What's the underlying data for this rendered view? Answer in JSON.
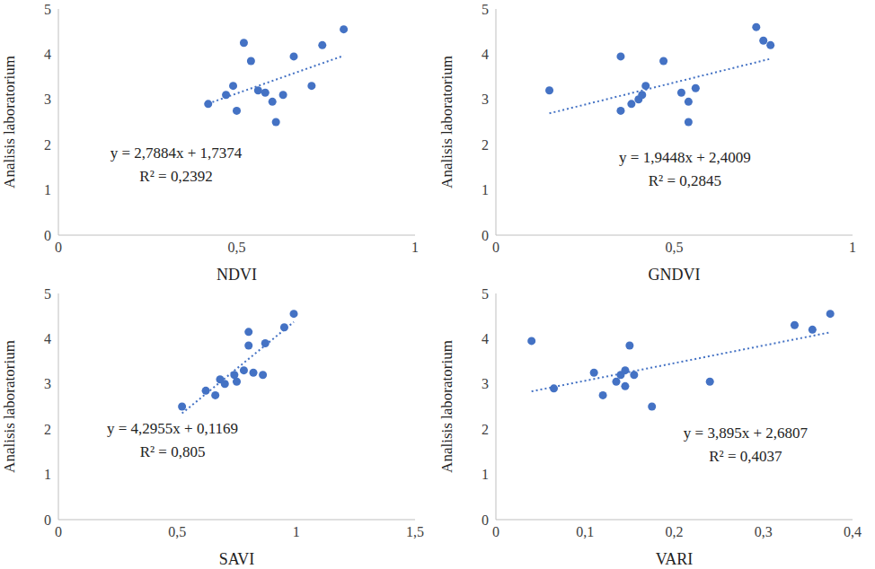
{
  "chart_data": [
    {
      "type": "scatter",
      "x_label": "NDVI",
      "y_label": "Analisis laboratorium",
      "color": "#4472c4",
      "marker": "circle",
      "xlim": [
        0,
        1
      ],
      "xticks": [
        0,
        {
          "value": 0.5,
          "label": "0,5"
        },
        1
      ],
      "ylim": [
        0,
        5
      ],
      "yticks": [
        0,
        1,
        2,
        3,
        4,
        5
      ],
      "x": [
        0.42,
        0.47,
        0.49,
        0.5,
        0.52,
        0.54,
        0.56,
        0.58,
        0.6,
        0.61,
        0.63,
        0.66,
        0.71,
        0.74,
        0.8
      ],
      "values": [
        2.9,
        3.1,
        3.3,
        2.75,
        4.25,
        3.85,
        3.2,
        3.15,
        2.95,
        2.5,
        3.1,
        3.95,
        3.3,
        4.2,
        4.55
      ],
      "trendline": {
        "slope": 2.7884,
        "intercept": 1.7374,
        "line_style": "dotted"
      },
      "annotations": [
        "y = 2,7884x + 1,7374",
        "R² = 0,2392"
      ]
    },
    {
      "type": "scatter",
      "x_label": "GNDVI",
      "y_label": "Analisis laboratorium",
      "color": "#4472c4",
      "marker": "circle",
      "xlim": [
        0,
        1
      ],
      "xticks": [
        0,
        {
          "value": 0.5,
          "label": "0,5"
        },
        1
      ],
      "ylim": [
        0,
        5
      ],
      "yticks": [
        0,
        1,
        2,
        3,
        4,
        5
      ],
      "x": [
        0.15,
        0.35,
        0.35,
        0.38,
        0.4,
        0.41,
        0.42,
        0.47,
        0.52,
        0.54,
        0.54,
        0.56,
        0.73,
        0.75,
        0.77
      ],
      "values": [
        3.2,
        2.75,
        3.95,
        2.9,
        3.0,
        3.1,
        3.3,
        3.85,
        3.15,
        2.95,
        2.5,
        3.25,
        4.6,
        4.3,
        4.2
      ],
      "trendline": {
        "slope": 1.9448,
        "intercept": 2.4009,
        "line_style": "dotted"
      },
      "annotations": [
        "y = 1,9448x + 2,4009",
        "R² = 0,2845"
      ]
    },
    {
      "type": "scatter",
      "x_label": "SAVI",
      "y_label": "Analisis laboratorium",
      "color": "#4472c4",
      "marker": "circle",
      "xlim": [
        0,
        1.5
      ],
      "xticks": [
        0,
        {
          "value": 0.5,
          "label": "0,5"
        },
        1,
        {
          "value": 1.5,
          "label": "1,5"
        }
      ],
      "ylim": [
        0,
        5
      ],
      "yticks": [
        0,
        1,
        2,
        3,
        4,
        5
      ],
      "x": [
        0.52,
        0.62,
        0.66,
        0.68,
        0.7,
        0.74,
        0.75,
        0.78,
        0.8,
        0.8,
        0.82,
        0.86,
        0.87,
        0.95,
        0.99
      ],
      "values": [
        2.5,
        2.85,
        2.75,
        3.1,
        3.0,
        3.2,
        3.05,
        3.3,
        3.85,
        4.15,
        3.25,
        3.2,
        3.9,
        4.25,
        4.55
      ],
      "trendline": {
        "slope": 4.2955,
        "intercept": 0.1169,
        "line_style": "dotted"
      },
      "annotations": [
        "y = 4,2955x + 0,1169",
        "R² = 0,805"
      ]
    },
    {
      "type": "scatter",
      "x_label": "VARI",
      "y_label": "Analisis laboratorium",
      "color": "#4472c4",
      "marker": "circle",
      "xlim": [
        0,
        0.4
      ],
      "xticks": [
        0,
        {
          "value": 0.1,
          "label": "0,1"
        },
        {
          "value": 0.2,
          "label": "0,2"
        },
        {
          "value": 0.3,
          "label": "0,3"
        },
        {
          "value": 0.4,
          "label": "0,4"
        }
      ],
      "ylim": [
        0,
        5
      ],
      "yticks": [
        0,
        1,
        2,
        3,
        4,
        5
      ],
      "x": [
        0.04,
        0.065,
        0.11,
        0.12,
        0.135,
        0.14,
        0.145,
        0.145,
        0.15,
        0.155,
        0.175,
        0.24,
        0.335,
        0.355,
        0.375
      ],
      "values": [
        3.95,
        2.9,
        3.25,
        2.75,
        3.05,
        3.2,
        2.95,
        3.3,
        3.85,
        3.2,
        2.5,
        3.05,
        4.3,
        4.2,
        4.55
      ],
      "trendline": {
        "slope": 3.895,
        "intercept": 2.6807,
        "line_style": "dotted"
      },
      "annotations": [
        "y = 3,895x + 2,6807",
        "R² = 0,4037"
      ]
    }
  ]
}
